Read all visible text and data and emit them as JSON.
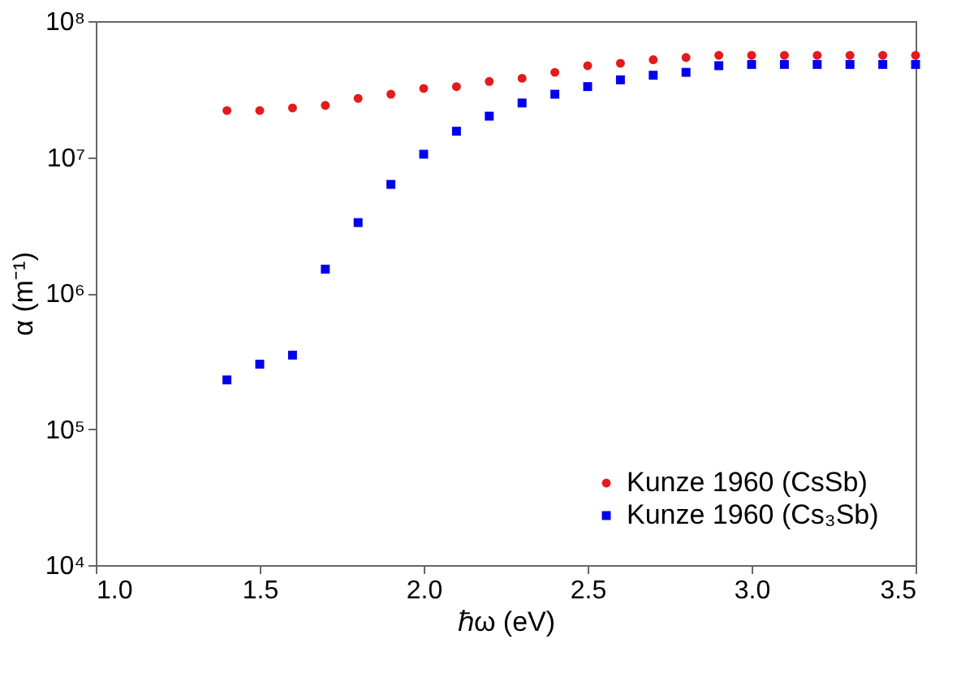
{
  "chart_data": {
    "type": "scatter",
    "xlabel": "ℏω (eV)",
    "ylabel": "α (m⁻¹)",
    "x": [
      1.4,
      1.5,
      1.6,
      1.7,
      1.8,
      1.9,
      2.0,
      2.1,
      2.2,
      2.3,
      2.4,
      2.5,
      2.6,
      2.7,
      2.8,
      2.9,
      3.0,
      3.1,
      3.2,
      3.3,
      3.4,
      3.5
    ],
    "series": [
      {
        "name": "Kunze 1960 (CsSb)",
        "color": "#e41a1c",
        "marker": "circle",
        "values": [
          22000000.0,
          22000000.0,
          23000000.0,
          24000000.0,
          27000000.0,
          29000000.0,
          32000000.0,
          33000000.0,
          36000000.0,
          38000000.0,
          42000000.0,
          47000000.0,
          49000000.0,
          52000000.0,
          54000000.0,
          56000000.0,
          56000000.0,
          56000000.0,
          56000000.0,
          56000000.0,
          56000000.0,
          56000000.0
        ]
      },
      {
        "name": "Kunze 1960 (Cs₃Sb)",
        "color": "#0000ee",
        "marker": "square",
        "values": [
          230000.0,
          300000.0,
          350000.0,
          1500000.0,
          3300000.0,
          6300000.0,
          10500000.0,
          15500000.0,
          20000000.0,
          25000000.0,
          29000000.0,
          33000000.0,
          37000000.0,
          40000000.0,
          42000000.0,
          47000000.0,
          48000000.0,
          48000000.0,
          48000000.0,
          48000000.0,
          48000000.0,
          48000000.0
        ]
      }
    ],
    "xlim": [
      1.0,
      3.5
    ],
    "xticks": [
      {
        "value": 1,
        "label": "1.0"
      },
      1.5,
      {
        "value": 2,
        "label": "2.0"
      },
      2.5,
      {
        "value": 3,
        "label": "3.0"
      },
      3.5
    ],
    "ylim": [
      10000,
      100000000
    ],
    "log": "y",
    "yticks": [
      {
        "value": 10000,
        "label": "10⁴"
      },
      {
        "value": 100000,
        "label": "10⁵"
      },
      {
        "value": 1000000,
        "label": "10⁶"
      },
      {
        "value": 10000000,
        "label": "10⁷"
      },
      {
        "value": 100000000,
        "label": "10⁸"
      }
    ],
    "legend": "bottom right",
    "grid": false
  }
}
